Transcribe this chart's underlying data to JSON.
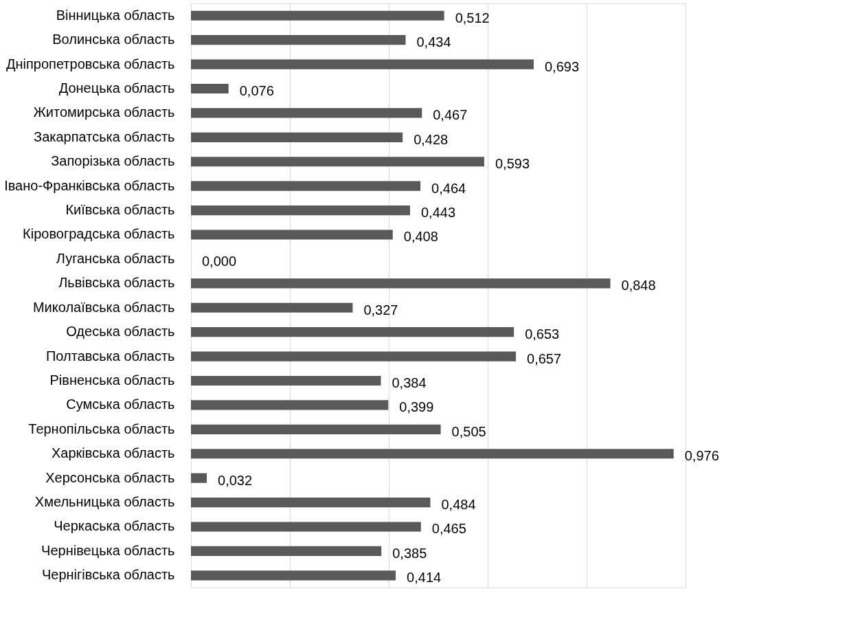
{
  "chart_data": {
    "type": "bar",
    "orientation": "horizontal",
    "categories": [
      "Вінницька область",
      "Волинська область",
      "Дніпропетровська область",
      "Донецька область",
      "Житомирська область",
      "Закарпатська область",
      "Запорізька область",
      "Івано-Франківська область",
      "Київська область",
      "Кіровоградська область",
      "Луганська область",
      "Львівська область",
      "Миколаївська область",
      "Одеська область",
      "Полтавська область",
      "Рівненська область",
      "Сумська область",
      "Тернопільська область",
      "Харківська область",
      "Херсонська область",
      "Хмельницька область",
      "Черкаська область",
      "Чернівецька область",
      "Чернігівська область"
    ],
    "values": [
      0.512,
      0.434,
      0.693,
      0.076,
      0.467,
      0.428,
      0.593,
      0.464,
      0.443,
      0.408,
      0.0,
      0.848,
      0.327,
      0.653,
      0.657,
      0.384,
      0.399,
      0.505,
      0.976,
      0.032,
      0.484,
      0.465,
      0.385,
      0.414
    ],
    "value_labels": [
      "0,512",
      "0,434",
      "0,693",
      "0,076",
      "0,467",
      "0,428",
      "0,593",
      "0,464",
      "0,443",
      "0,408",
      "0,000",
      "0,848",
      "0,327",
      "0,653",
      "0,657",
      "0,384",
      "0,399",
      "0,505",
      "0,976",
      "0,032",
      "0,484",
      "0,465",
      "0,385",
      "0,414"
    ],
    "color": "#595959",
    "xlim": [
      0,
      1.0
    ],
    "xticks": [
      {
        "value": 0,
        "label": null
      },
      {
        "value": 0.2,
        "label": null
      },
      {
        "value": 0.4,
        "label": null
      },
      {
        "value": 0.6,
        "label": null
      },
      {
        "value": 0.8,
        "label": null
      },
      {
        "value": 1.0,
        "label": null
      }
    ],
    "grid": "x",
    "tick_labels": "y"
  }
}
